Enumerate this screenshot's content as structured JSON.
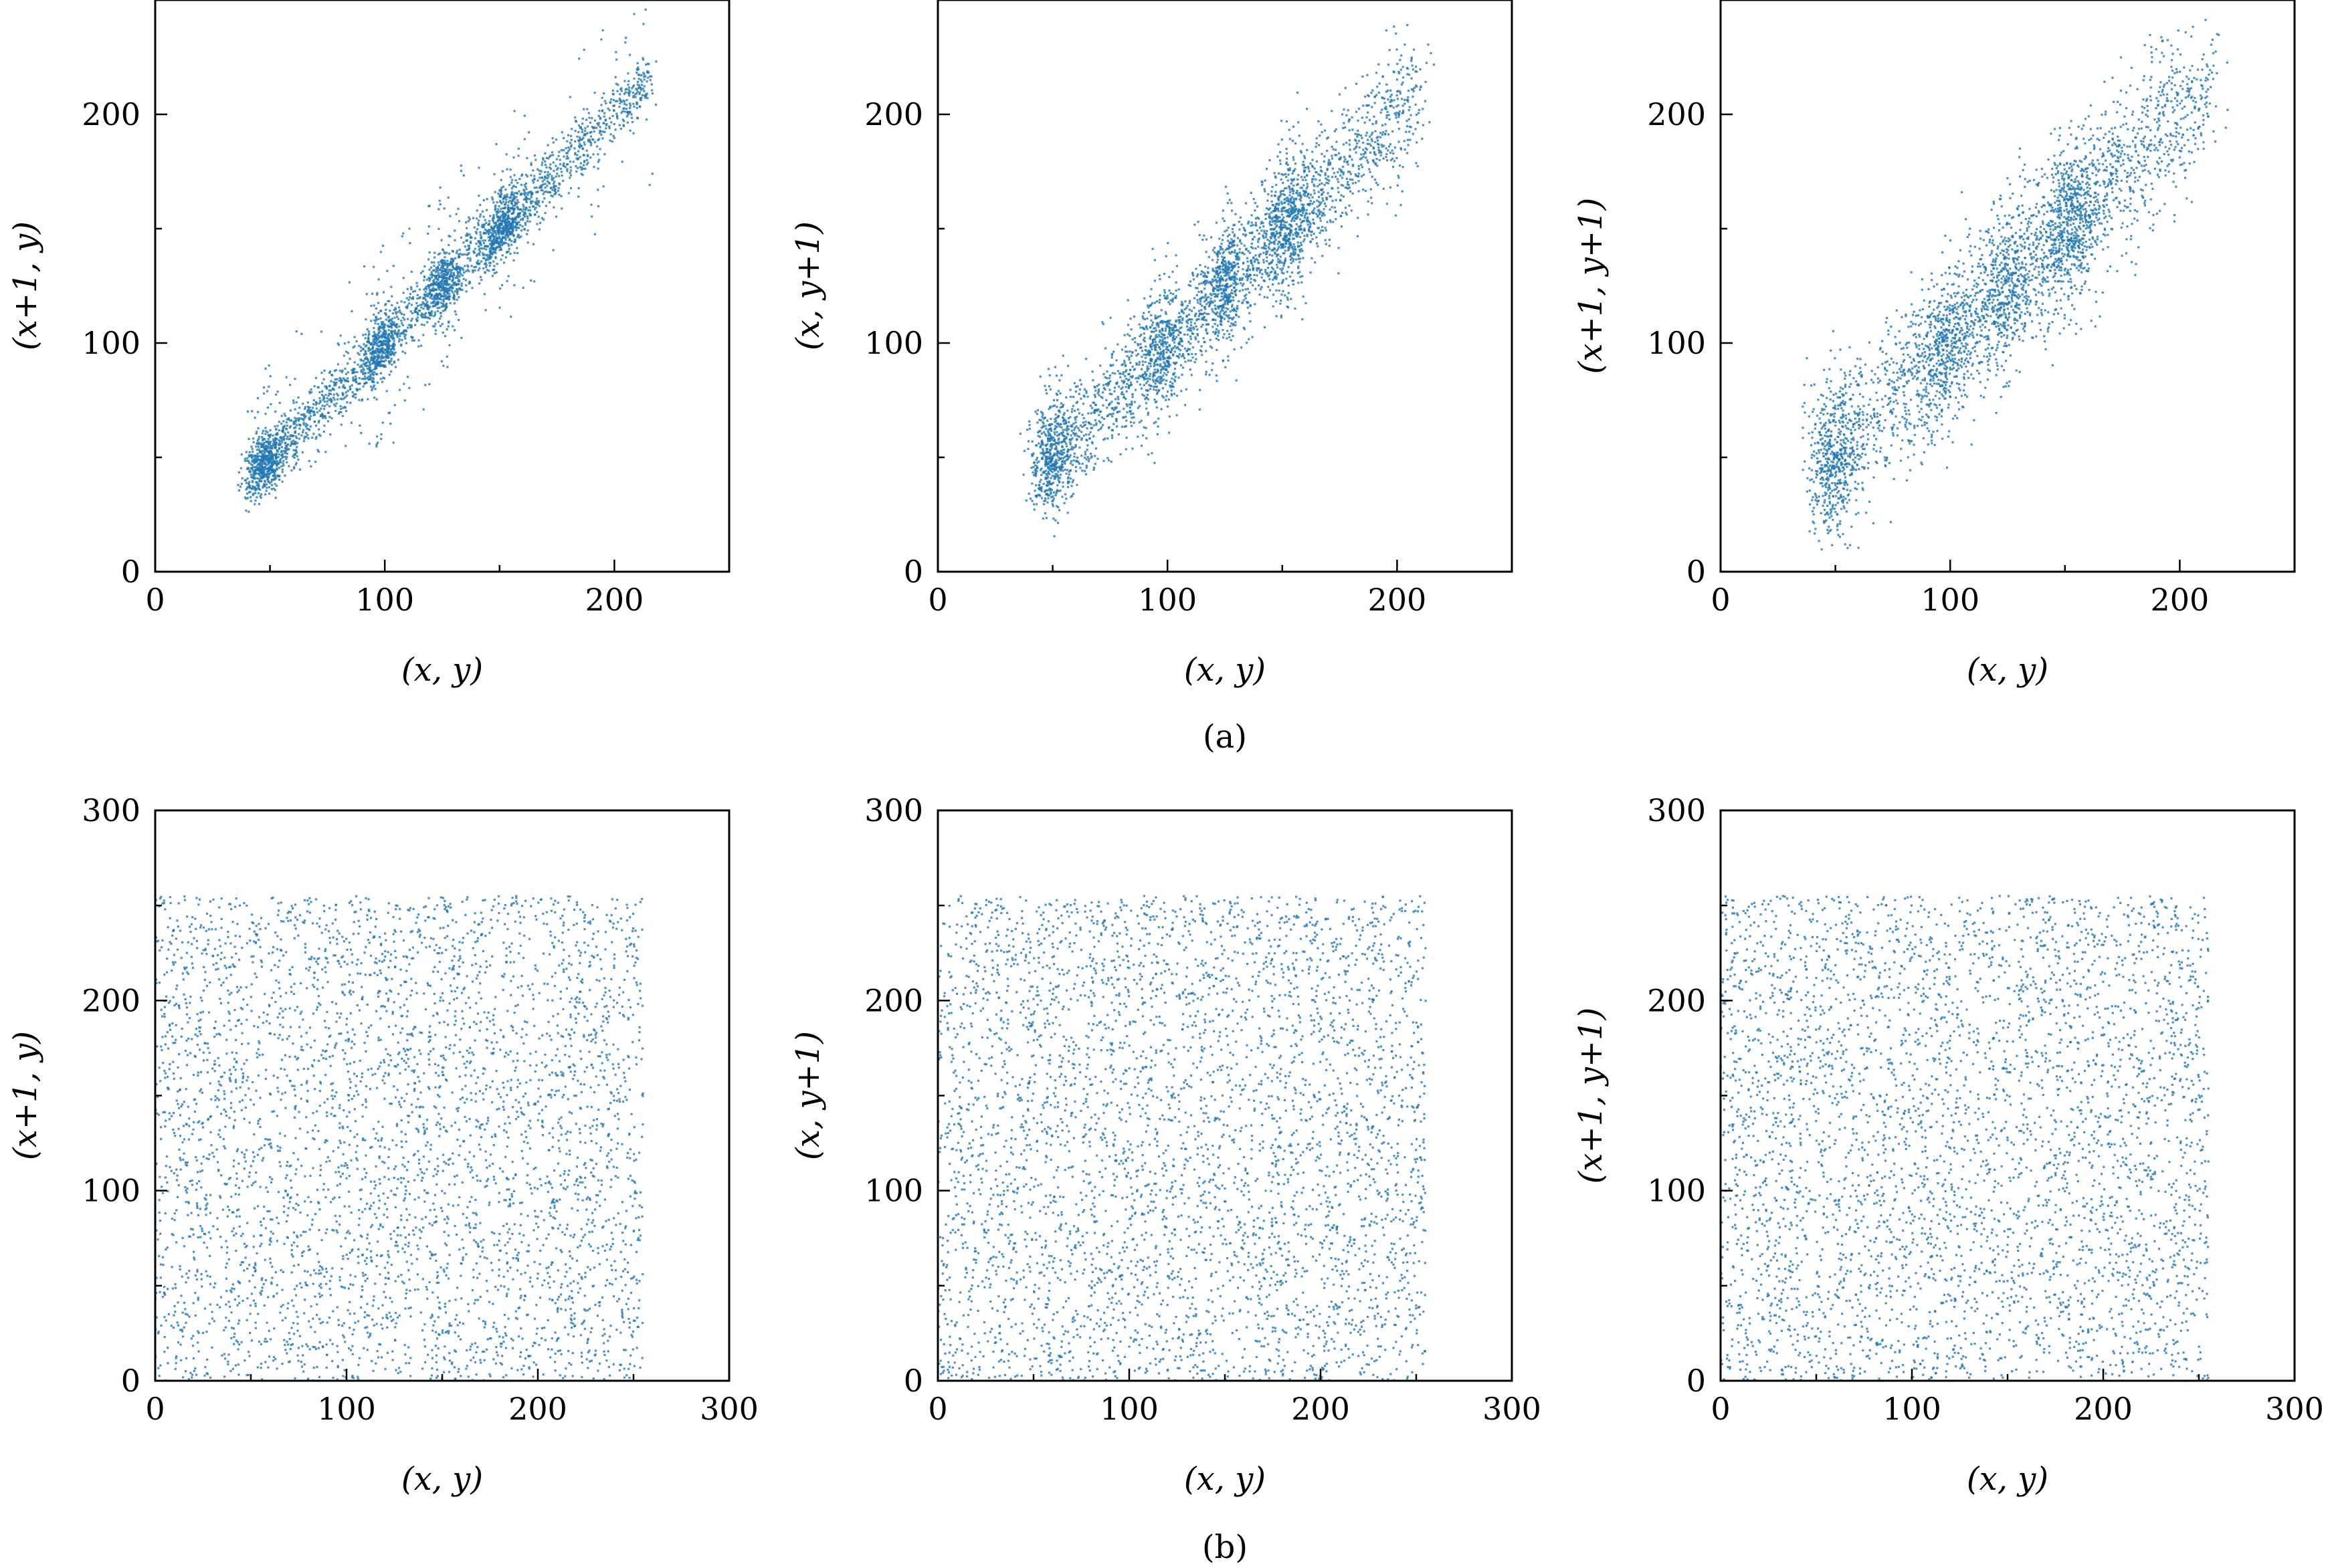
{
  "figure_captions": [
    "(a)",
    "(b)"
  ],
  "chart_data": [
    {
      "type": "scatter",
      "panel": "a1",
      "title": "",
      "xlabel": "(x, y)",
      "ylabel": "(x+1, y)",
      "xlim": [
        0,
        250
      ],
      "ylim": [
        0,
        250
      ],
      "xticks": [
        0,
        100,
        200
      ],
      "yticks": [
        0,
        100,
        200
      ],
      "color": "#1f77b4",
      "distribution": "correlated",
      "points": 3500,
      "spread": 7,
      "range": [
        40,
        215
      ],
      "grid": false,
      "legend": "none"
    },
    {
      "type": "scatter",
      "panel": "a2",
      "title": "",
      "xlabel": "(x, y)",
      "ylabel": "(x, y+1)",
      "xlim": [
        0,
        250
      ],
      "ylim": [
        0,
        250
      ],
      "xticks": [
        0,
        100,
        200
      ],
      "yticks": [
        0,
        100,
        200
      ],
      "color": "#1f77b4",
      "distribution": "correlated",
      "points": 3500,
      "spread": 12,
      "range": [
        45,
        210
      ],
      "grid": false,
      "legend": "none"
    },
    {
      "type": "scatter",
      "panel": "a3",
      "title": "",
      "xlabel": "(x, y)",
      "ylabel": "(x+1, y+1)",
      "xlim": [
        0,
        250
      ],
      "ylim": [
        0,
        250
      ],
      "xticks": [
        0,
        100,
        200
      ],
      "yticks": [
        0,
        100,
        200
      ],
      "color": "#1f77b4",
      "distribution": "correlated",
      "points": 3500,
      "spread": 16,
      "range": [
        45,
        212
      ],
      "grid": false,
      "legend": "none"
    },
    {
      "type": "scatter",
      "panel": "b1",
      "title": "",
      "xlabel": "(x, y)",
      "ylabel": "(x+1, y)",
      "xlim": [
        0,
        300
      ],
      "ylim": [
        0,
        300
      ],
      "xticks": [
        0,
        100,
        200,
        300
      ],
      "yticks": [
        0,
        100,
        200,
        300
      ],
      "color": "#1f77b4",
      "distribution": "uniform",
      "points": 4000,
      "range": [
        0,
        255
      ],
      "grid": false,
      "legend": "none"
    },
    {
      "type": "scatter",
      "panel": "b2",
      "title": "",
      "xlabel": "(x, y)",
      "ylabel": "(x, y+1)",
      "xlim": [
        0,
        300
      ],
      "ylim": [
        0,
        300
      ],
      "xticks": [
        0,
        100,
        200,
        300
      ],
      "yticks": [
        0,
        100,
        200,
        300
      ],
      "color": "#1f77b4",
      "distribution": "uniform",
      "points": 4000,
      "range": [
        0,
        255
      ],
      "grid": false,
      "legend": "none"
    },
    {
      "type": "scatter",
      "panel": "b3",
      "title": "",
      "xlabel": "(x, y)",
      "ylabel": "(x+1, y+1)",
      "xlim": [
        0,
        300
      ],
      "ylim": [
        0,
        300
      ],
      "xticks": [
        0,
        100,
        200,
        300
      ],
      "yticks": [
        0,
        100,
        200,
        300
      ],
      "color": "#1f77b4",
      "distribution": "uniform",
      "points": 4000,
      "range": [
        0,
        255
      ],
      "grid": false,
      "legend": "none"
    }
  ]
}
